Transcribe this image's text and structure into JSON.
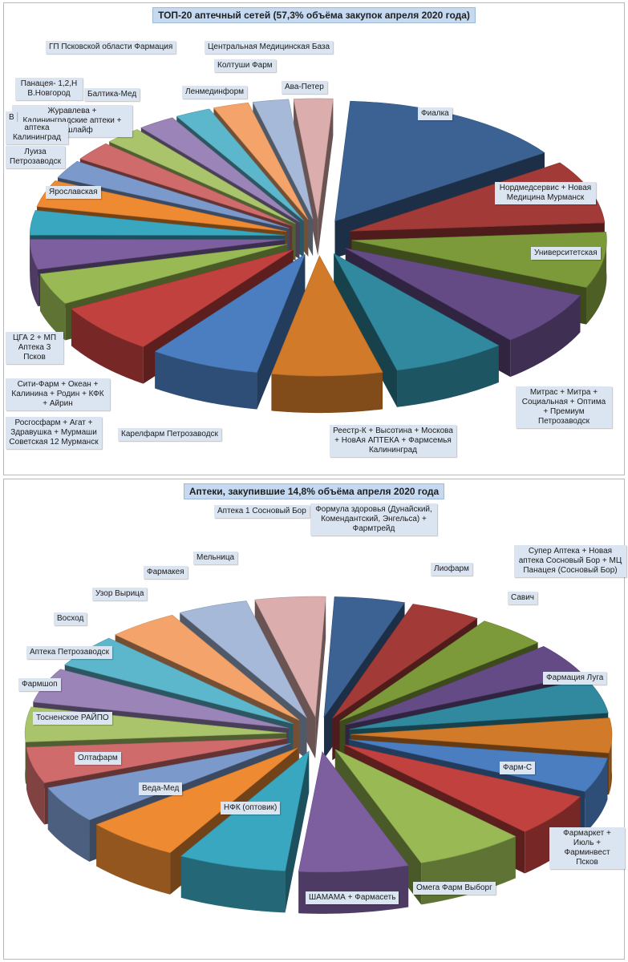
{
  "chart_data": [
    {
      "type": "pie",
      "title": "ТОП-20 аптечный сетей (57,3% объёма закупок апреля 2020 года)",
      "slices": [
        {
          "label": "Фиалка",
          "value": 14.0,
          "color": "#3c6294"
        },
        {
          "label": "Нордмедсервис + Новая Медицина Мурманск",
          "value": 8.3,
          "color": "#a23a38"
        },
        {
          "label": "Университетская",
          "value": 7.3,
          "color": "#7c9a3a"
        },
        {
          "label": "Митрас + Митра + Социальная + Оптима + Премиум Петрозаводск",
          "value": 7.2,
          "color": "#644b86"
        },
        {
          "label": "Реестр-К + Высотина + Москова + НовАя АПТЕКА + Фармсемья Калининград",
          "value": 7.0,
          "color": "#30899f"
        },
        {
          "label": "Карелфарм Петрозаводск",
          "value": 6.8,
          "color": "#d07a2a"
        },
        {
          "label": "Росгосфарм + Агат + Здравушка + Мурмаши Советская 12 Мурманск",
          "value": 6.8,
          "color": "#4a7ec0"
        },
        {
          "label": "Сити-Фарм + Океан + Калинина + Родин + КФК + Айрин",
          "value": 6.6,
          "color": "#c0413e"
        },
        {
          "label": "ЦГА 2 + МП Аптека 3 Псков",
          "value": 4.1,
          "color": "#98b954"
        },
        {
          "label": "",
          "value": 3.9,
          "color": "#7d5fa0"
        },
        {
          "label": "Ярославская",
          "value": 3.2,
          "color": "#3aa7c0"
        },
        {
          "label": "Луиза Петрозаводск",
          "value": 3.5,
          "color": "#ee8a32"
        },
        {
          "label": "Журавлева + Калининградские аптеки + Фрэшлайф",
          "value": 2.4,
          "color": "#7b9acb"
        },
        {
          "label": "Панацея- 1,2,Н В.Новгород",
          "value": 2.5,
          "color": "#d06b6b"
        },
        {
          "label": "Балтика-Мед",
          "value": 2.3,
          "color": "#a9c46a"
        },
        {
          "label": "ГП Псковской области Фармация",
          "value": 2.3,
          "color": "#9a84b8"
        },
        {
          "label": "Ленмединформ",
          "value": 2.2,
          "color": "#5cb6cc"
        },
        {
          "label": "Колтуши Фарм",
          "value": 2.2,
          "color": "#f4a46a"
        },
        {
          "label": "Центральная Медицинская База",
          "value": 2.2,
          "color": "#a6b9d9"
        },
        {
          "label": "Ава-Петер",
          "value": 2.4,
          "color": "#dcadad"
        }
      ],
      "extra_labels": [
        "В",
        "аптека Калининград"
      ]
    },
    {
      "type": "pie",
      "title": "Аптеки, закупившие 14,8% объёма апреля 2020 года",
      "slices": [
        {
          "label": "Формула здоровья (Дунайский, Комендантский, Энгельса) + Фармтрейд",
          "value": 4.3,
          "color": "#3c6294"
        },
        {
          "label": "Лиофарм",
          "value": 4.3,
          "color": "#a23a38"
        },
        {
          "label": "Савич",
          "value": 4.3,
          "color": "#7c9a3a"
        },
        {
          "label": "Супер Аптека + Новая аптека Сосновый Бор + МЦ Панацея (Сосновый Бор)",
          "value": 4.4,
          "color": "#644b86"
        },
        {
          "label": "Фармация Луга",
          "value": 4.6,
          "color": "#30899f"
        },
        {
          "label": "Фармаркет + Июль + Фарминвест Псков",
          "value": 4.6,
          "color": "#d07a2a"
        },
        {
          "label": "Фарм-С",
          "value": 4.6,
          "color": "#4a7ec0"
        },
        {
          "label": "Омега Фарм Выборг",
          "value": 5.7,
          "color": "#c0413e"
        },
        {
          "label": "ШАМАМА + Фармасеть",
          "value": 6.7,
          "color": "#98b954"
        },
        {
          "label": "НФК (оптовик)",
          "value": 6.7,
          "color": "#7d5fa0"
        },
        {
          "label": "Веда-Мед",
          "value": 6.6,
          "color": "#3aa7c0"
        },
        {
          "label": "Олтафарм",
          "value": 5.8,
          "color": "#ee8a32"
        },
        {
          "label": "Тосненское РАЙПО",
          "value": 4.9,
          "color": "#7b9acb"
        },
        {
          "label": "Фармшоп",
          "value": 4.8,
          "color": "#d06b6b"
        },
        {
          "label": "Аптека Петрозаводск",
          "value": 4.6,
          "color": "#a9c46a"
        },
        {
          "label": "Восход",
          "value": 4.6,
          "color": "#9a84b8"
        },
        {
          "label": "Узор Вырица",
          "value": 4.4,
          "color": "#5cb6cc"
        },
        {
          "label": "Фармакея",
          "value": 4.3,
          "color": "#f4a46a"
        },
        {
          "label": "Мельница",
          "value": 4.3,
          "color": "#a6b9d9"
        },
        {
          "label": "Аптека 1 Сосновый Бор",
          "value": 4.3,
          "color": "#dcadad"
        }
      ]
    }
  ]
}
